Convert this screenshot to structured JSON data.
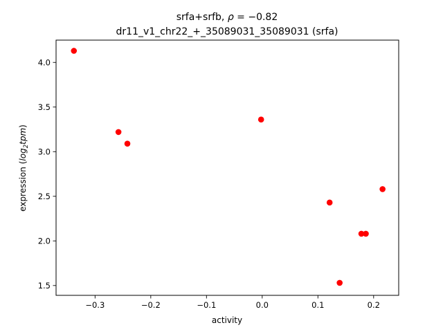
{
  "chart_data": {
    "type": "scatter",
    "title_line1_prefix": "srfa+srfb, ",
    "title_rho_symbol": "ρ",
    "title_rho_value": " = −0.82",
    "title_line2": "dr11_v1_chr22_+_35089031_35089031 (srfa)",
    "xlabel": "activity",
    "ylabel_prefix": "expression (",
    "ylabel_log": "log",
    "ylabel_sub": "2",
    "ylabel_tpm": "tpm",
    "ylabel_suffix": ")",
    "xlim": [
      -0.37,
      0.245
    ],
    "ylim": [
      1.39,
      4.25
    ],
    "xticks": [
      -0.3,
      -0.2,
      -0.1,
      0.0,
      0.1,
      0.2
    ],
    "xtick_labels": [
      "−0.3",
      "−0.2",
      "−0.1",
      "0.0",
      "0.1",
      "0.2"
    ],
    "yticks": [
      1.5,
      2.0,
      2.5,
      3.0,
      3.5,
      4.0
    ],
    "ytick_labels": [
      "1.5",
      "2.0",
      "2.5",
      "3.0",
      "3.5",
      "4.0"
    ],
    "grid": false,
    "marker_color": "#ff0000",
    "points": [
      {
        "x": -0.338,
        "y": 4.13
      },
      {
        "x": -0.258,
        "y": 3.22
      },
      {
        "x": -0.242,
        "y": 3.09
      },
      {
        "x": -0.002,
        "y": 3.36
      },
      {
        "x": 0.121,
        "y": 2.43
      },
      {
        "x": 0.139,
        "y": 1.53
      },
      {
        "x": 0.178,
        "y": 2.08
      },
      {
        "x": 0.186,
        "y": 2.08
      },
      {
        "x": 0.216,
        "y": 2.58
      }
    ]
  }
}
